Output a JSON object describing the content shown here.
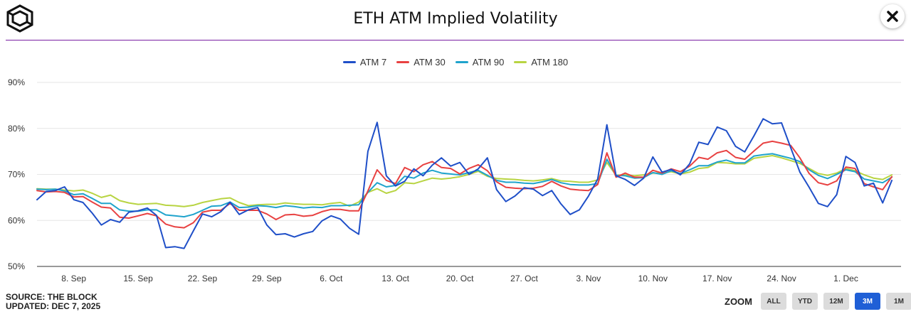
{
  "title": "ETH ATM Implied Volatility",
  "source_line": "SOURCE: THE BLOCK",
  "updated_line": "UPDATED: DEC 7, 2025",
  "zoom": {
    "label": "ZOOM",
    "options": [
      "ALL",
      "YTD",
      "12M",
      "3M",
      "1M"
    ],
    "active": "3M"
  },
  "colors": {
    "accent": "#7a1fa2",
    "active": "#1f5fd6"
  },
  "chart_data": {
    "type": "line",
    "title": "ETH ATM Implied Volatility",
    "xlabel": "",
    "ylabel": "",
    "ylim": [
      50,
      90
    ],
    "y_ticks": [
      50,
      60,
      70,
      80,
      90
    ],
    "y_tick_labels": [
      "50%",
      "60%",
      "70%",
      "80%",
      "90%"
    ],
    "x_tick_labels": [
      "8. Sep",
      "15. Sep",
      "22. Sep",
      "29. Sep",
      "6. Oct",
      "13. Oct",
      "20. Oct",
      "27. Oct",
      "3. Nov",
      "10. Nov",
      "17. Nov",
      "24. Nov",
      "1. Dec"
    ],
    "x_tick_index": [
      4,
      11,
      18,
      25,
      32,
      39,
      46,
      53,
      60,
      67,
      74,
      81,
      88
    ],
    "x_range": [
      0,
      94
    ],
    "legend_position": "top-center",
    "grid": true,
    "series": [
      {
        "name": "ATM 7",
        "color": "#1f4fc8",
        "values": [
          64.5,
          66.3,
          66.5,
          67.3,
          64.5,
          63.9,
          61.6,
          59.0,
          60.2,
          59.6,
          61.8,
          62.1,
          62.7,
          61.1,
          54.1,
          54.3,
          53.9,
          57.7,
          61.4,
          60.8,
          61.9,
          64.0,
          61.3,
          62.3,
          62.8,
          59.0,
          56.9,
          57.1,
          56.4,
          57.1,
          57.6,
          59.9,
          61.0,
          60.3,
          58.3,
          57.0,
          75.0,
          81.3,
          69.7,
          67.5,
          68.5,
          71.2,
          69.7,
          72.0,
          73.6,
          71.8,
          72.6,
          70.0,
          71.2,
          73.6,
          66.7,
          64.1,
          65.3,
          67.1,
          66.8,
          65.4,
          66.5,
          63.6,
          61.3,
          62.3,
          65.3,
          69.0,
          80.8,
          69.7,
          68.9,
          67.6,
          69.2,
          73.8,
          70.5,
          71.1,
          69.9,
          72.3,
          77.0,
          76.5,
          80.3,
          79.5,
          76.1,
          74.9,
          78.4,
          82.1,
          81.0,
          81.2,
          75.8,
          70.5,
          67.2,
          63.7,
          63.0,
          65.6,
          73.9,
          72.6,
          67.5,
          68.1,
          63.8,
          68.7
        ]
      },
      {
        "name": "ATM 30",
        "color": "#e84141",
        "values": [
          66.5,
          66.2,
          66.3,
          66.1,
          65.1,
          65.2,
          64.0,
          62.9,
          62.7,
          60.7,
          60.5,
          61.0,
          61.5,
          61.0,
          59.2,
          58.6,
          58.4,
          59.5,
          61.8,
          62.2,
          62.2,
          63.7,
          62.2,
          62.2,
          62.2,
          61.4,
          60.2,
          61.2,
          61.3,
          60.9,
          61.1,
          61.9,
          62.4,
          62.4,
          62.1,
          62.1,
          66.4,
          71.0,
          68.7,
          68.0,
          71.5,
          70.6,
          72.1,
          72.8,
          71.5,
          71.3,
          70.1,
          71.3,
          72.1,
          70.8,
          68.4,
          67.2,
          67.0,
          66.9,
          67.0,
          67.4,
          68.5,
          67.5,
          66.8,
          66.6,
          66.5,
          67.8,
          74.7,
          69.4,
          70.3,
          69.4,
          69.4,
          70.9,
          70.3,
          71.2,
          70.6,
          71.8,
          73.7,
          73.3,
          74.7,
          75.2,
          73.7,
          73.3,
          75.1,
          76.8,
          77.2,
          76.8,
          76.3,
          73.6,
          70.2,
          68.2,
          67.7,
          68.6,
          71.6,
          71.3,
          68.0,
          67.3,
          66.7,
          69.5
        ]
      },
      {
        "name": "ATM 90",
        "color": "#1fa3cc",
        "values": [
          66.8,
          66.7,
          66.8,
          66.4,
          65.6,
          65.8,
          64.8,
          63.7,
          63.7,
          62.3,
          62.0,
          62.0,
          62.3,
          62.3,
          61.2,
          61.0,
          60.8,
          61.3,
          62.2,
          63.1,
          63.2,
          64.0,
          62.8,
          62.9,
          63.2,
          63.1,
          62.8,
          63.2,
          63.0,
          62.7,
          62.9,
          62.8,
          63.2,
          63.2,
          63.3,
          63.4,
          66.1,
          68.2,
          67.3,
          67.6,
          69.6,
          69.2,
          70.3,
          70.9,
          70.3,
          70.1,
          69.9,
          70.4,
          70.9,
          69.8,
          68.7,
          68.3,
          68.3,
          68.1,
          68.0,
          68.4,
          68.9,
          68.2,
          67.8,
          67.7,
          67.7,
          68.0,
          73.3,
          69.8,
          69.7,
          69.2,
          69.3,
          70.4,
          70.0,
          70.8,
          70.2,
          71.0,
          71.9,
          71.9,
          72.7,
          73.1,
          72.5,
          72.5,
          74.0,
          74.3,
          74.5,
          74.0,
          73.5,
          72.8,
          71.0,
          69.8,
          69.1,
          70.0,
          71.0,
          70.6,
          69.0,
          68.6,
          68.2,
          69.4
        ]
      },
      {
        "name": "ATM 180",
        "color": "#b8d442",
        "values": [
          66.9,
          66.8,
          66.8,
          66.6,
          66.4,
          66.6,
          65.9,
          65.0,
          65.5,
          64.3,
          63.8,
          63.5,
          63.6,
          63.7,
          63.3,
          63.2,
          63.0,
          63.3,
          63.9,
          64.3,
          64.7,
          64.9,
          63.9,
          63.2,
          63.4,
          63.5,
          63.5,
          63.8,
          63.6,
          63.5,
          63.5,
          63.4,
          63.7,
          63.9,
          63.1,
          64.0,
          66.1,
          66.9,
          65.9,
          66.5,
          68.2,
          68.0,
          68.6,
          69.2,
          69.0,
          69.2,
          69.5,
          70.0,
          70.7,
          69.6,
          69.1,
          69.0,
          68.9,
          68.7,
          68.6,
          68.8,
          69.1,
          68.6,
          68.5,
          68.3,
          68.3,
          68.8,
          72.6,
          69.8,
          69.9,
          69.7,
          69.9,
          70.3,
          70.3,
          70.6,
          70.1,
          70.5,
          71.3,
          71.5,
          72.6,
          72.5,
          72.3,
          72.3,
          73.5,
          73.8,
          74.1,
          73.6,
          73.0,
          72.4,
          71.3,
          70.2,
          69.8,
          70.3,
          71.3,
          70.8,
          69.9,
          69.2,
          68.9,
          69.9
        ]
      }
    ]
  }
}
